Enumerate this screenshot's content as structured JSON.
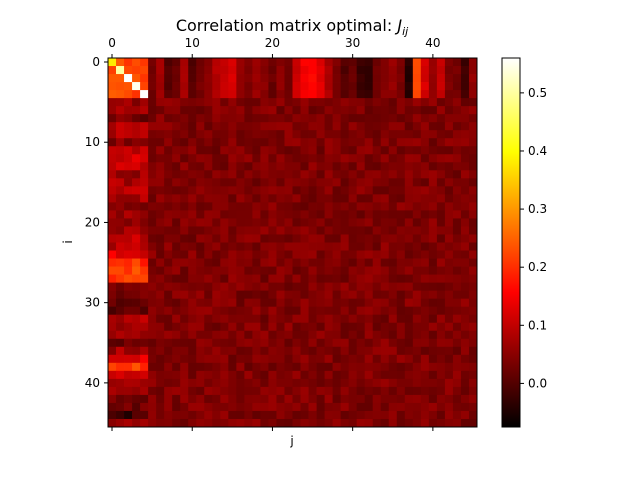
{
  "chart_data": {
    "type": "heatmap",
    "title": "Correlation matrix optimal: ",
    "title_math": "J",
    "title_sub": "ij",
    "xlabel": "j",
    "ylabel": "i",
    "rows": 46,
    "cols": 46,
    "x_ticks": [
      0,
      10,
      20,
      30,
      40
    ],
    "x_tick_labels": [
      "0",
      "10",
      "20",
      "30",
      "40"
    ],
    "x_tick_position": "top",
    "y_ticks": [
      0,
      10,
      20,
      30,
      40
    ],
    "y_tick_labels": [
      "0",
      "10",
      "20",
      "30",
      "40"
    ],
    "colormap": "hot",
    "colorbar": {
      "vmin": -0.075,
      "vmax": 0.56,
      "ticks": [
        0.0,
        0.1,
        0.2,
        0.3,
        0.4,
        0.5
      ],
      "tick_labels": [
        "0.0",
        "0.1",
        "0.2",
        "0.3",
        "0.4",
        "0.5"
      ]
    },
    "diagonal_block": {
      "rows": [
        0,
        4
      ],
      "cols": [
        0,
        4
      ],
      "diag_values": [
        0.38,
        0.5,
        0.56,
        0.55,
        0.56
      ]
    },
    "background_level": 0.04,
    "header_rows_0_4_column_values": [
      0.18,
      0.2,
      0.21,
      0.22,
      0.24,
      0.03,
      0.07,
      0.0,
      0.02,
      0.08,
      0.0,
      0.03,
      0.05,
      0.09,
      0.1,
      0.12,
      0.06,
      0.04,
      0.06,
      0.05,
      0.02,
      0.05,
      0.03,
      0.11,
      0.15,
      0.16,
      0.13,
      0.08,
      0.04,
      0.0,
      0.02,
      -0.02,
      -0.03,
      0.03,
      0.05,
      0.06,
      0.03,
      -0.04,
      0.22,
      0.12,
      0.06,
      0.1,
      0.04,
      0.03,
      -0.02,
      0.06
    ],
    "first_columns_0_4_row_values": [
      0.25,
      0.23,
      0.21,
      0.22,
      0.2,
      0.06,
      0.06,
      0.03,
      0.09,
      0.08,
      0.05,
      0.09,
      0.11,
      0.1,
      0.07,
      0.08,
      0.1,
      0.08,
      0.03,
      0.06,
      0.04,
      0.07,
      0.1,
      0.09,
      0.13,
      0.2,
      0.22,
      0.21,
      0.05,
      0.04,
      0.01,
      0.0,
      0.09,
      0.06,
      0.07,
      0.03,
      0.07,
      0.14,
      0.21,
      0.1,
      0.09,
      0.06,
      0.03,
      0.02,
      -0.02,
      0.05
    ]
  }
}
